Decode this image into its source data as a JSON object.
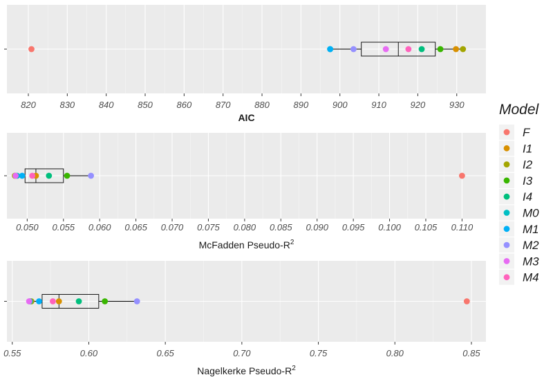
{
  "chart_data": [
    {
      "type": "boxplot-points",
      "xlabel": "AIC",
      "xlabel_bold": true,
      "ticks": [
        820,
        830,
        840,
        850,
        860,
        870,
        880,
        890,
        900,
        910,
        920,
        930
      ],
      "tick_labels": [
        "820",
        "830",
        "840",
        "850",
        "860",
        "870",
        "880",
        "890",
        "900",
        "910",
        "920",
        "930"
      ],
      "xlim": [
        814.5,
        937.5
      ],
      "box": {
        "min": 897.5,
        "q1": 905.5,
        "median": 915,
        "q3": 924.5,
        "max": 931.8
      },
      "points": [
        {
          "model": "F",
          "value": 820.8
        },
        {
          "model": "I1",
          "value": 929.8
        },
        {
          "model": "I2",
          "value": 931.6
        },
        {
          "model": "I3",
          "value": 925.8
        },
        {
          "model": "I4",
          "value": 921.0
        },
        {
          "model": "M0",
          "value": 897.5
        },
        {
          "model": "M1",
          "value": 897.5
        },
        {
          "model": "M2",
          "value": 903.5
        },
        {
          "model": "M3",
          "value": 911.8
        },
        {
          "model": "M4",
          "value": 917.6
        }
      ]
    },
    {
      "type": "boxplot-points",
      "xlabel": "McFadden Pseudo-R",
      "xlabel_sup": "2",
      "ticks": [
        0.05,
        0.055,
        0.06,
        0.065,
        0.07,
        0.075,
        0.08,
        0.085,
        0.09,
        0.095,
        0.1,
        0.105,
        0.11
      ],
      "tick_labels": [
        "0.050",
        "0.055",
        "0.060",
        "0.065",
        "0.070",
        "0.075",
        "0.080",
        "0.085",
        "0.090",
        "0.095",
        "0.100",
        "0.105",
        "0.110"
      ],
      "xlim": [
        0.0472,
        0.1133
      ],
      "box": {
        "min": 0.0482,
        "q1": 0.0497,
        "median": 0.0512,
        "q3": 0.055,
        "max": 0.0588
      },
      "points": [
        {
          "model": "F",
          "value": 0.11
        },
        {
          "model": "I1",
          "value": 0.0512
        },
        {
          "model": "I2",
          "value": 0.0483
        },
        {
          "model": "I3",
          "value": 0.0555
        },
        {
          "model": "I4",
          "value": 0.053
        },
        {
          "model": "M0",
          "value": 0.0486
        },
        {
          "model": "M1",
          "value": 0.0493
        },
        {
          "model": "M2",
          "value": 0.0588
        },
        {
          "model": "M3",
          "value": 0.0484
        },
        {
          "model": "M4",
          "value": 0.0507
        }
      ]
    },
    {
      "type": "boxplot-points",
      "xlabel": "Nagelkerke Pseudo-R",
      "xlabel_sup": "2",
      "ticks": [
        0.55,
        0.6,
        0.65,
        0.7,
        0.75,
        0.8,
        0.85
      ],
      "tick_labels": [
        "0.55",
        "0.60",
        "0.65",
        "0.70",
        "0.75",
        "0.80",
        "0.85"
      ],
      "xlim": [
        0.5465,
        0.8595
      ],
      "box": {
        "min": 0.561,
        "q1": 0.5695,
        "median": 0.5805,
        "q3": 0.6065,
        "max": 0.631
      },
      "points": [
        {
          "model": "F",
          "value": 0.847
        },
        {
          "model": "I1",
          "value": 0.5805
        },
        {
          "model": "I2",
          "value": 0.5625
        },
        {
          "model": "I3",
          "value": 0.6105
        },
        {
          "model": "I4",
          "value": 0.5935
        },
        {
          "model": "M0",
          "value": 0.5615
        },
        {
          "model": "M1",
          "value": 0.5675
        },
        {
          "model": "M2",
          "value": 0.6315
        },
        {
          "model": "M3",
          "value": 0.561
        },
        {
          "model": "M4",
          "value": 0.5765
        }
      ]
    }
  ],
  "legend": {
    "title": "Model",
    "items": [
      {
        "label": "F",
        "color": "#F8766D"
      },
      {
        "label": "I1",
        "color": "#D89000"
      },
      {
        "label": "I2",
        "color": "#A3A500"
      },
      {
        "label": "I3",
        "color": "#39B600"
      },
      {
        "label": "I4",
        "color": "#00BF7D"
      },
      {
        "label": "M0",
        "color": "#00BFC4"
      },
      {
        "label": "M1",
        "color": "#00B0F6"
      },
      {
        "label": "M2",
        "color": "#9590FF"
      },
      {
        "label": "M3",
        "color": "#E76BF3"
      },
      {
        "label": "M4",
        "color": "#FF62BC"
      }
    ]
  },
  "style": {
    "panel_background": "#EBEBEB",
    "grid_color": "#FFFFFF",
    "box_color": "#000000"
  }
}
